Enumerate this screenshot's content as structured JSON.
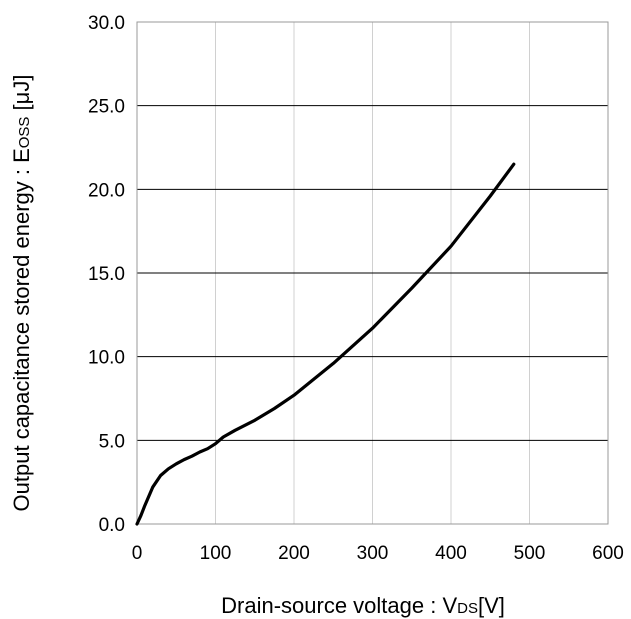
{
  "chart_data": {
    "type": "line",
    "title": "",
    "xlabel": {
      "prefix": "Drain-source voltage : V",
      "sub": "DS",
      "suffix": "[V]"
    },
    "ylabel": {
      "prefix": "Output capacitance stored energy : E",
      "sub": "OSS",
      "suffix": " [μJ]"
    },
    "xlim": [
      0,
      600
    ],
    "ylim": [
      0,
      30
    ],
    "xticks": [
      "0",
      "100",
      "200",
      "300",
      "400",
      "500",
      "600"
    ],
    "yticks": [
      "0.0",
      "5.0",
      "10.0",
      "15.0",
      "20.0",
      "25.0",
      "30.0"
    ],
    "grid": {
      "horizontal": true,
      "vertical": true
    },
    "colors": {
      "line": "#000000",
      "h_grid": "#000000",
      "v_grid": "#d0d0d0",
      "frame": "#999999"
    },
    "series": [
      {
        "x": [
          0,
          5,
          10,
          20,
          30,
          40,
          50,
          60,
          70,
          80,
          90,
          100,
          110,
          125,
          150,
          175,
          200,
          250,
          300,
          350,
          400,
          450,
          480
        ],
        "y": [
          0.0,
          0.5,
          1.1,
          2.2,
          2.9,
          3.3,
          3.6,
          3.85,
          4.05,
          4.3,
          4.5,
          4.8,
          5.2,
          5.6,
          6.2,
          6.9,
          7.7,
          9.6,
          11.7,
          14.1,
          16.6,
          19.6,
          21.5
        ]
      }
    ]
  }
}
